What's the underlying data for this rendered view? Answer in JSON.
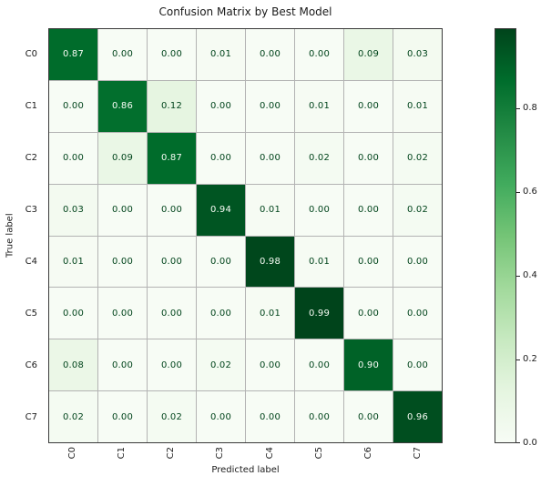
{
  "figure": {
    "background": "#ffffff"
  },
  "chart_data": {
    "type": "heatmap",
    "title": "Confusion Matrix by Best Model",
    "xlabel": "Predicted label",
    "ylabel": "True label",
    "x_categories": [
      "C0",
      "C1",
      "C2",
      "C3",
      "C4",
      "C5",
      "C6",
      "C7"
    ],
    "y_categories": [
      "C0",
      "C1",
      "C2",
      "C3",
      "C4",
      "C5",
      "C6",
      "C7"
    ],
    "matrix": [
      [
        0.87,
        0.0,
        0.0,
        0.01,
        0.0,
        0.0,
        0.09,
        0.03
      ],
      [
        0.0,
        0.86,
        0.12,
        0.0,
        0.0,
        0.01,
        0.0,
        0.01
      ],
      [
        0.0,
        0.09,
        0.87,
        0.0,
        0.0,
        0.02,
        0.0,
        0.02
      ],
      [
        0.03,
        0.0,
        0.0,
        0.94,
        0.01,
        0.0,
        0.0,
        0.02
      ],
      [
        0.01,
        0.0,
        0.0,
        0.0,
        0.98,
        0.01,
        0.0,
        0.0
      ],
      [
        0.0,
        0.0,
        0.0,
        0.0,
        0.01,
        0.99,
        0.0,
        0.0
      ],
      [
        0.08,
        0.0,
        0.0,
        0.02,
        0.0,
        0.0,
        0.9,
        0.0
      ],
      [
        0.02,
        0.0,
        0.02,
        0.0,
        0.0,
        0.0,
        0.0,
        0.96
      ]
    ],
    "value_decimals": 2,
    "vmin": 0.0,
    "vmax": 0.99,
    "colormap": {
      "name": "Greens",
      "anchors": [
        "#f7fcf5",
        "#e5f5e0",
        "#c7e9c0",
        "#a1d99b",
        "#74c476",
        "#41ab5d",
        "#238b45",
        "#006d2c",
        "#00441b"
      ]
    },
    "colorbar": {
      "tick_labels": [
        "0.8",
        "0.6",
        "0.4",
        "0.2",
        "0.0"
      ],
      "tick_values": [
        0.8,
        0.6,
        0.4,
        0.2,
        0.0
      ],
      "position": "right"
    },
    "grid": "cell borders on",
    "grid_line_color": "#b3b3b3",
    "axes_border_color": "#3a3a3a",
    "annotation_color_on_light": "#00441b",
    "annotation_color_on_dark": "#f7fcf5"
  }
}
